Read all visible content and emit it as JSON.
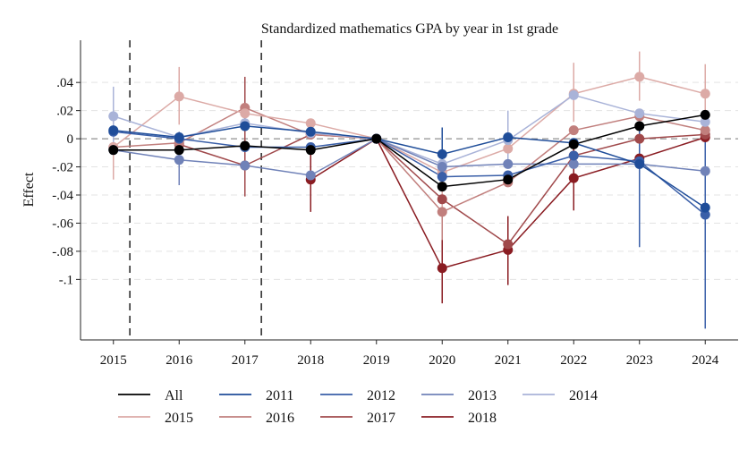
{
  "chart_data": {
    "type": "line",
    "title": "Standardized mathematics GPA by year in 1st grade",
    "xlabel": "",
    "ylabel": "Effect",
    "x": [
      2015,
      2016,
      2017,
      2018,
      2019,
      2020,
      2021,
      2022,
      2023,
      2024
    ],
    "xlim": [
      2014.5,
      2024.5
    ],
    "ylim": [
      -0.143,
      0.07
    ],
    "y_ticks": [
      0.04,
      0.02,
      0,
      -0.02,
      -0.04,
      -0.06,
      -0.08,
      -0.1
    ],
    "y_tick_labels": [
      ".04",
      ".02",
      "0",
      "-.02",
      "-.04",
      "-.06",
      "-.08",
      "-.1"
    ],
    "x_tick_labels": [
      "2015",
      "2016",
      "2017",
      "2018",
      "2019",
      "2020",
      "2021",
      "2022",
      "2023",
      "2024"
    ],
    "grid": "horizontal dashed",
    "reference_line_y": 0,
    "vertical_markers_x": [
      2015.25,
      2017.25
    ],
    "legend_position": "bottom",
    "series": [
      {
        "name": "All",
        "color": "#000000",
        "values": [
          -0.008,
          -0.008,
          -0.005,
          -0.008,
          0,
          -0.034,
          -0.029,
          -0.004,
          0.009,
          0.017
        ],
        "ci_low": [
          null,
          null,
          null,
          null,
          null,
          null,
          null,
          null,
          null,
          null
        ],
        "ci_high": [
          null,
          null,
          null,
          null,
          null,
          null,
          null,
          null,
          null,
          null
        ]
      },
      {
        "name": "2011",
        "color": "#1f4d99",
        "values": [
          0.006,
          0.001,
          0.009,
          0.005,
          0,
          -0.011,
          0.001,
          -0.003,
          -0.018,
          -0.049
        ],
        "ci_low": [
          null,
          null,
          null,
          null,
          null,
          -0.025,
          null,
          null,
          null,
          null
        ],
        "ci_high": [
          null,
          null,
          null,
          null,
          null,
          0.008,
          null,
          null,
          null,
          null
        ]
      },
      {
        "name": "2012",
        "color": "#3a5fa8",
        "values": [
          0.005,
          0.0,
          -0.006,
          -0.006,
          0,
          -0.027,
          -0.026,
          -0.012,
          -0.016,
          -0.054
        ],
        "ci_low": [
          null,
          null,
          null,
          null,
          null,
          null,
          null,
          null,
          -0.077,
          -0.135
        ],
        "ci_high": [
          null,
          null,
          null,
          null,
          null,
          null,
          null,
          null,
          0.008,
          0.002
        ]
      },
      {
        "name": "2013",
        "color": "#7082b8",
        "values": [
          -0.008,
          -0.015,
          -0.019,
          -0.026,
          0,
          -0.02,
          -0.018,
          -0.018,
          -0.018,
          -0.023
        ],
        "ci_low": [
          null,
          -0.033,
          null,
          null,
          null,
          null,
          null,
          null,
          null,
          null
        ],
        "ci_high": [
          null,
          0.005,
          null,
          null,
          null,
          null,
          null,
          null,
          null,
          null
        ]
      },
      {
        "name": "2014",
        "color": "#a9b3d8",
        "values": [
          0.016,
          0.001,
          0.011,
          0.004,
          0,
          -0.018,
          -0.001,
          0.031,
          0.018,
          0.012
        ],
        "ci_low": [
          -0.004,
          null,
          null,
          null,
          null,
          null,
          -0.02,
          null,
          null,
          null
        ],
        "ci_high": [
          0.037,
          null,
          null,
          null,
          null,
          null,
          0.02,
          null,
          null,
          null
        ]
      },
      {
        "name": "2015",
        "color": "#dcaaa6",
        "values": [
          -0.006,
          0.03,
          0.018,
          0.011,
          0,
          -0.024,
          -0.007,
          0.032,
          0.044,
          0.032
        ],
        "ci_low": [
          -0.029,
          0.01,
          null,
          null,
          null,
          -0.05,
          null,
          0.012,
          0.027,
          0.012
        ],
        "ci_high": [
          0.011,
          0.051,
          null,
          0.031,
          null,
          -0.002,
          null,
          0.054,
          0.062,
          0.053
        ]
      },
      {
        "name": "2016",
        "color": "#c17f7d",
        "values": [
          -0.006,
          -0.003,
          0.022,
          0.003,
          0,
          -0.052,
          -0.031,
          0.006,
          0.016,
          0.006
        ],
        "ci_low": [
          null,
          null,
          null,
          null,
          null,
          -0.072,
          null,
          null,
          null,
          null
        ],
        "ci_high": [
          null,
          null,
          null,
          null,
          null,
          -0.032,
          null,
          null,
          null,
          null
        ]
      },
      {
        "name": "2017",
        "color": "#a0494b",
        "values": [
          null,
          -0.004,
          -0.019,
          0.003,
          0,
          -0.043,
          -0.075,
          -0.012,
          0.0,
          0.003
        ],
        "ci_low": [
          null,
          null,
          -0.041,
          null,
          null,
          null,
          null,
          null,
          null,
          null
        ],
        "ci_high": [
          null,
          null,
          0.044,
          null,
          null,
          null,
          -0.052,
          null,
          null,
          null
        ]
      },
      {
        "name": "2018",
        "color": "#8a1c22",
        "values": [
          null,
          null,
          null,
          -0.029,
          0,
          -0.092,
          -0.079,
          -0.028,
          -0.014,
          0.001
        ],
        "ci_low": [
          null,
          null,
          null,
          -0.052,
          null,
          -0.117,
          -0.104,
          -0.051,
          null,
          null
        ],
        "ci_high": [
          null,
          null,
          null,
          -0.006,
          null,
          -0.066,
          -0.055,
          -0.005,
          null,
          null
        ]
      }
    ]
  }
}
